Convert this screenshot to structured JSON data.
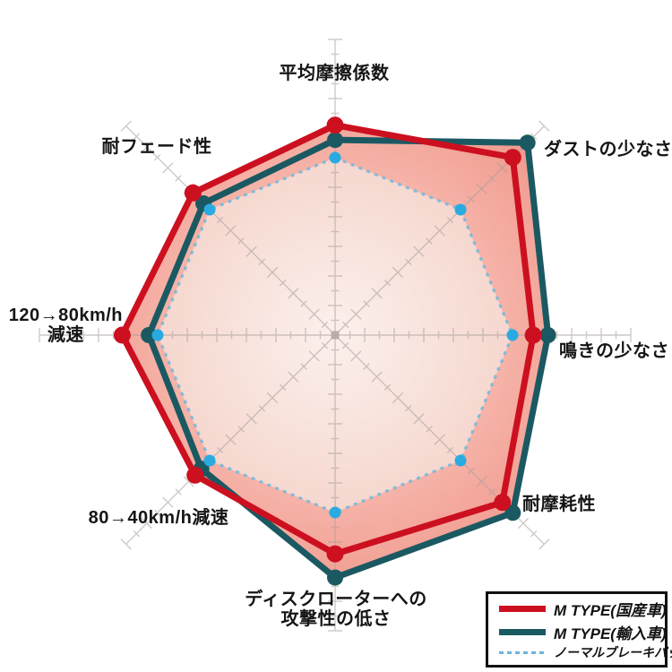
{
  "chart_data": {
    "type": "radar",
    "axes": [
      {
        "id": "avg-friction-coefficient",
        "lines": [
          "平均摩擦係数"
        ]
      },
      {
        "id": "low-dust",
        "lines": [
          "ダストの少なさ"
        ]
      },
      {
        "id": "low-squeal",
        "lines": [
          "鳴きの少なさ"
        ]
      },
      {
        "id": "wear-resistance",
        "lines": [
          "耐摩耗性"
        ]
      },
      {
        "id": "low-rotor-attack",
        "lines": [
          "ディスクローターへの",
          "攻撃性の低さ"
        ]
      },
      {
        "id": "decel-80-40",
        "lines": [
          "80→40km/h減速"
        ]
      },
      {
        "id": "decel-120-80",
        "lines": [
          "120→80km/h",
          "減速"
        ]
      },
      {
        "id": "fade-resistance",
        "lines": [
          "耐フェード性"
        ]
      }
    ],
    "scale": {
      "min": 0,
      "max": 10,
      "ticks_per_unit": 2,
      "grid": "radial-spokes-with-cross-ticks"
    },
    "series": [
      {
        "name": "M TYPE(国産車)",
        "color": "#cc1020",
        "style": "solid",
        "values": [
          7.1,
          8.5,
          6.7,
          8.0,
          7.4,
          6.7,
          7.2,
          6.8
        ]
      },
      {
        "name": "M TYPE(輸入車)",
        "color": "#1b5962",
        "style": "solid",
        "values": [
          6.6,
          9.2,
          7.2,
          8.5,
          8.2,
          6.4,
          6.3,
          6.3
        ]
      },
      {
        "name": "ノーマルブレーキパッド",
        "color": "#69b6de",
        "style": "dashed",
        "values": [
          6.0,
          6.0,
          6.0,
          6.0,
          6.0,
          6.0,
          6.0,
          6.0
        ]
      }
    ],
    "legend_position": "bottom-right"
  },
  "colors": {
    "red_series": "#cc1020",
    "teal_series": "#1b5962",
    "normal_line": "#69b6de",
    "normal_dot": "#29abe2",
    "fill_outer_center": "#fdf2ee",
    "fill_outer_mid": "#f6b3a8",
    "fill_outer_edge": "#f09a8e",
    "fill_inner_center": "#fcf0ec",
    "fill_inner_edge": "#f5d6cd",
    "grid": "#a89e9b",
    "center_marker": "#b2a9a6",
    "text": "#151515",
    "legend_border": "#111111"
  }
}
